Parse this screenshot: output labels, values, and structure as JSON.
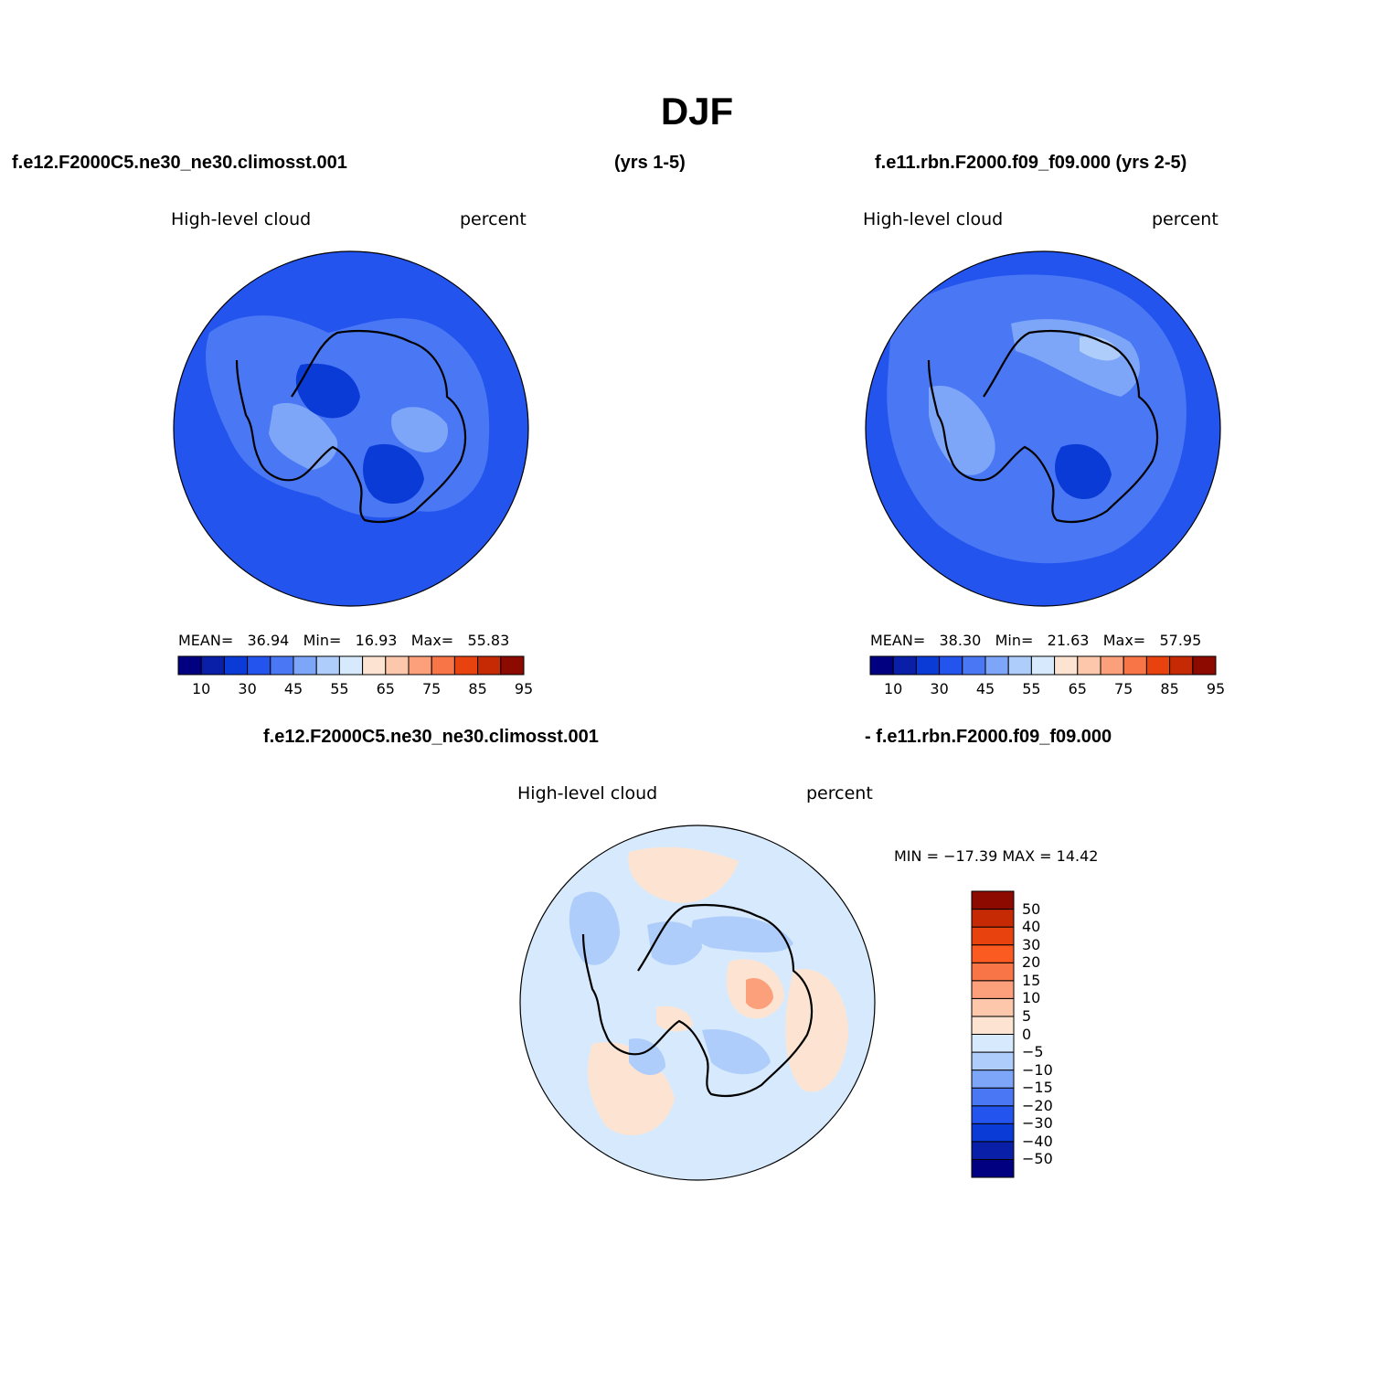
{
  "title": "DJF",
  "headers": {
    "case1": "f.e12.F2000C5.ne30_ne30.climosst.001",
    "case1_years": "(yrs 1-5)",
    "case2": "f.e11.rbn.F2000.f09_f09.000 (yrs 2-5)",
    "diff_left": "f.e12.F2000C5.ne30_ne30.climosst.001",
    "diff_right": "- f.e11.rbn.F2000.f09_f09.000"
  },
  "panels": [
    {
      "variable": "High-level cloud",
      "units": "percent",
      "stats": {
        "mean_label": "MEAN=",
        "mean": "36.94",
        "min_label": "Min=",
        "min": "16.93",
        "max_label": "Max=",
        "max": "55.83"
      }
    },
    {
      "variable": "High-level cloud",
      "units": "percent",
      "stats": {
        "mean_label": "MEAN=",
        "mean": "38.30",
        "min_label": "Min=",
        "min": "21.63",
        "max_label": "Max=",
        "max": "57.95"
      }
    }
  ],
  "diff_panel": {
    "variable": "High-level cloud",
    "units": "percent",
    "minmax": "MIN = −17.39 MAX =  14.42"
  },
  "colorbar_abs": {
    "colors": [
      "#000080",
      "#0a1fa8",
      "#0a3bd6",
      "#2454ee",
      "#4a78f4",
      "#7ea6f8",
      "#aecdfb",
      "#d7eafd",
      "#fde4d2",
      "#fdc7ac",
      "#fba07b",
      "#f77546",
      "#e8420f",
      "#c62a04",
      "#8c0a00"
    ],
    "labels": [
      "10",
      "30",
      "45",
      "55",
      "65",
      "75",
      "85",
      "95"
    ]
  },
  "colorbar_diff": {
    "colors": [
      "#000080",
      "#0a1fa8",
      "#0a3bd6",
      "#2454ee",
      "#4a78f4",
      "#7ea6f8",
      "#aecdfb",
      "#d7eafd",
      "#fde4d2",
      "#fdc7ac",
      "#fba07b",
      "#f77546",
      "#fb5a20",
      "#e8420f",
      "#c62a04",
      "#8c0a00"
    ],
    "labels": [
      "50",
      "40",
      "30",
      "20",
      "15",
      "10",
      "5",
      "0",
      "−5",
      "−10",
      "−15",
      "−20",
      "−30",
      "−40",
      "−50"
    ]
  },
  "map_colors": {
    "panel1_base": "#2454ee",
    "panel2_base": "#2454ee",
    "diff_base": "#d7eafd"
  }
}
